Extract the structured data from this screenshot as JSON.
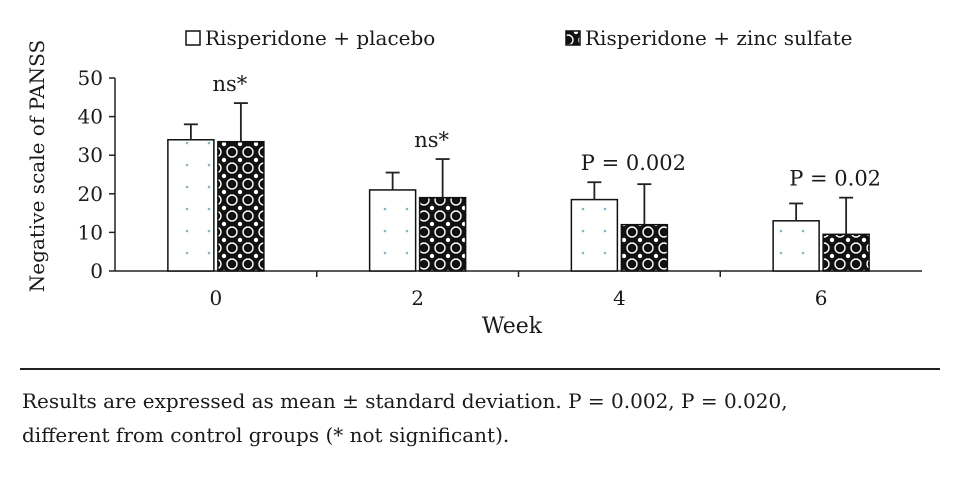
{
  "chart_data": {
    "type": "bar",
    "categories": [
      "0",
      "2",
      "4",
      "6"
    ],
    "xlabel": "Week",
    "ylabel": "Negative scale of PANSS",
    "ylim": [
      0,
      50
    ],
    "yticks": [
      "0",
      "10",
      "20",
      "30",
      "40",
      "50"
    ],
    "grid": false,
    "legend_position": "top",
    "series": [
      {
        "name": "Risperidone + placebo",
        "values": [
          34,
          21,
          18.5,
          13
        ],
        "errors": [
          4,
          4.5,
          4.5,
          4.5
        ],
        "color": "#ffffff",
        "pattern": "dots"
      },
      {
        "name": "Risperidone + zinc sulfate",
        "values": [
          33.5,
          19,
          12,
          9.5
        ],
        "errors": [
          10,
          10,
          10.5,
          9.5
        ],
        "color": "#111111",
        "pattern": "circles"
      }
    ],
    "annotations": [
      "ns*",
      "ns*",
      "P = 0.002",
      "P = 0.02"
    ]
  },
  "footnote": {
    "line1": "Results are expressed as mean ± standard deviation. P = 0.002, P = 0.020,",
    "line2": "different from control groups (* not significant)."
  }
}
